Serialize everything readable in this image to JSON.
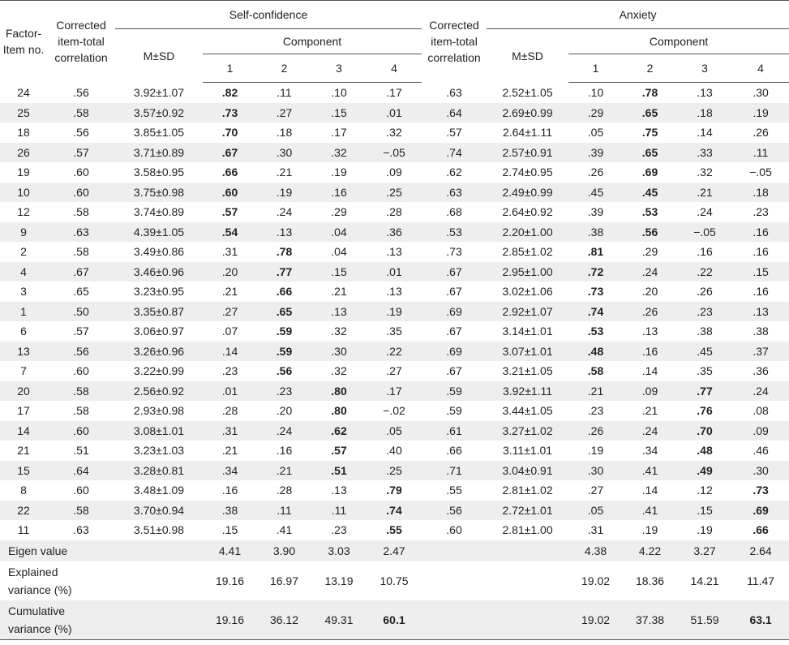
{
  "header": {
    "factor_item": "Factor-\nItem no.",
    "corrected_sc": "Corrected item-total correlation",
    "self_confidence": "Self-confidence",
    "msd_sc": "M±SD",
    "component_sc": "Component",
    "corrected_ax": "Corrected item-total correlation",
    "anxiety": "Anxiety",
    "msd_ax": "M±SD",
    "component_ax": "Component",
    "components": [
      "1",
      "2",
      "3",
      "4"
    ]
  },
  "rows": [
    {
      "item": "24",
      "sc_corr": ".56",
      "sc_msd": "3.92±1.07",
      "sc": [
        ".82",
        ".11",
        ".10",
        ".17"
      ],
      "sc_bold": 0,
      "ax_corr": ".63",
      "ax_msd": "2.52±1.05",
      "ax": [
        ".10",
        ".78",
        ".13",
        ".30"
      ],
      "ax_bold": 1
    },
    {
      "item": "25",
      "sc_corr": ".58",
      "sc_msd": "3.57±0.92",
      "sc": [
        ".73",
        ".27",
        ".15",
        ".01"
      ],
      "sc_bold": 0,
      "ax_corr": ".64",
      "ax_msd": "2.69±0.99",
      "ax": [
        ".29",
        ".65",
        ".18",
        ".19"
      ],
      "ax_bold": 1
    },
    {
      "item": "18",
      "sc_corr": ".56",
      "sc_msd": "3.85±1.05",
      "sc": [
        ".70",
        ".18",
        ".17",
        ".32"
      ],
      "sc_bold": 0,
      "ax_corr": ".57",
      "ax_msd": "2.64±1.11",
      "ax": [
        ".05",
        ".75",
        ".14",
        ".26"
      ],
      "ax_bold": 1
    },
    {
      "item": "26",
      "sc_corr": ".57",
      "sc_msd": "3.71±0.89",
      "sc": [
        ".67",
        ".30",
        ".32",
        "−.05"
      ],
      "sc_bold": 0,
      "ax_corr": ".74",
      "ax_msd": "2.57±0.91",
      "ax": [
        ".39",
        ".65",
        ".33",
        ".11"
      ],
      "ax_bold": 1
    },
    {
      "item": "19",
      "sc_corr": ".60",
      "sc_msd": "3.58±0.95",
      "sc": [
        ".66",
        ".21",
        ".19",
        ".09"
      ],
      "sc_bold": 0,
      "ax_corr": ".62",
      "ax_msd": "2.74±0.95",
      "ax": [
        ".26",
        ".69",
        ".32",
        "−.05"
      ],
      "ax_bold": 1
    },
    {
      "item": "10",
      "sc_corr": ".60",
      "sc_msd": "3.75±0.98",
      "sc": [
        ".60",
        ".19",
        ".16",
        ".25"
      ],
      "sc_bold": 0,
      "ax_corr": ".63",
      "ax_msd": "2.49±0.99",
      "ax": [
        ".45",
        ".45",
        ".21",
        ".18"
      ],
      "ax_bold": 1
    },
    {
      "item": "12",
      "sc_corr": ".58",
      "sc_msd": "3.74±0.89",
      "sc": [
        ".57",
        ".24",
        ".29",
        ".28"
      ],
      "sc_bold": 0,
      "ax_corr": ".68",
      "ax_msd": "2.64±0.92",
      "ax": [
        ".39",
        ".53",
        ".24",
        ".23"
      ],
      "ax_bold": 1
    },
    {
      "item": "9",
      "sc_corr": ".63",
      "sc_msd": "4.39±1.05",
      "sc": [
        ".54",
        ".13",
        ".04",
        ".36"
      ],
      "sc_bold": 0,
      "ax_corr": ".53",
      "ax_msd": "2.20±1.00",
      "ax": [
        ".38",
        ".56",
        "−.05",
        ".16"
      ],
      "ax_bold": 1
    },
    {
      "item": "2",
      "sc_corr": ".58",
      "sc_msd": "3.49±0.86",
      "sc": [
        ".31",
        ".78",
        ".04",
        ".13"
      ],
      "sc_bold": 1,
      "ax_corr": ".73",
      "ax_msd": "2.85±1.02",
      "ax": [
        ".81",
        ".29",
        ".16",
        ".16"
      ],
      "ax_bold": 0
    },
    {
      "item": "4",
      "sc_corr": ".67",
      "sc_msd": "3.46±0.96",
      "sc": [
        ".20",
        ".77",
        ".15",
        ".01"
      ],
      "sc_bold": 1,
      "ax_corr": ".67",
      "ax_msd": "2.95±1.00",
      "ax": [
        ".72",
        ".24",
        ".22",
        ".15"
      ],
      "ax_bold": 0
    },
    {
      "item": "3",
      "sc_corr": ".65",
      "sc_msd": "3.23±0.95",
      "sc": [
        ".21",
        ".66",
        ".21",
        ".13"
      ],
      "sc_bold": 1,
      "ax_corr": ".67",
      "ax_msd": "3.02±1.06",
      "ax": [
        ".73",
        ".20",
        ".26",
        ".16"
      ],
      "ax_bold": 0
    },
    {
      "item": "1",
      "sc_corr": ".50",
      "sc_msd": "3.35±0.87",
      "sc": [
        ".27",
        ".65",
        ".13",
        ".19"
      ],
      "sc_bold": 1,
      "ax_corr": ".69",
      "ax_msd": "2.92±1.07",
      "ax": [
        ".74",
        ".26",
        ".23",
        ".13"
      ],
      "ax_bold": 0
    },
    {
      "item": "6",
      "sc_corr": ".57",
      "sc_msd": "3.06±0.97",
      "sc": [
        ".07",
        ".59",
        ".32",
        ".35"
      ],
      "sc_bold": 1,
      "ax_corr": ".67",
      "ax_msd": "3.14±1.01",
      "ax": [
        ".53",
        ".13",
        ".38",
        ".38"
      ],
      "ax_bold": 0
    },
    {
      "item": "13",
      "sc_corr": ".56",
      "sc_msd": "3.26±0.96",
      "sc": [
        ".14",
        ".59",
        ".30",
        ".22"
      ],
      "sc_bold": 1,
      "ax_corr": ".69",
      "ax_msd": "3.07±1.01",
      "ax": [
        ".48",
        ".16",
        ".45",
        ".37"
      ],
      "ax_bold": 0
    },
    {
      "item": "7",
      "sc_corr": ".60",
      "sc_msd": "3.22±0.99",
      "sc": [
        ".23",
        ".56",
        ".32",
        ".27"
      ],
      "sc_bold": 1,
      "ax_corr": ".67",
      "ax_msd": "3.21±1.05",
      "ax": [
        ".58",
        ".14",
        ".35",
        ".36"
      ],
      "ax_bold": 0
    },
    {
      "item": "20",
      "sc_corr": ".58",
      "sc_msd": "2.56±0.92",
      "sc": [
        ".01",
        ".23",
        ".80",
        ".17"
      ],
      "sc_bold": 2,
      "ax_corr": ".59",
      "ax_msd": "3.92±1.11",
      "ax": [
        ".21",
        ".09",
        ".77",
        ".24"
      ],
      "ax_bold": 2
    },
    {
      "item": "17",
      "sc_corr": ".58",
      "sc_msd": "2.93±0.98",
      "sc": [
        ".28",
        ".20",
        ".80",
        "−.02"
      ],
      "sc_bold": 2,
      "ax_corr": ".59",
      "ax_msd": "3.44±1.05",
      "ax": [
        ".23",
        ".21",
        ".76",
        ".08"
      ],
      "ax_bold": 2
    },
    {
      "item": "14",
      "sc_corr": ".60",
      "sc_msd": "3.08±1.01",
      "sc": [
        ".31",
        ".24",
        ".62",
        ".05"
      ],
      "sc_bold": 2,
      "ax_corr": ".61",
      "ax_msd": "3.27±1.02",
      "ax": [
        ".26",
        ".24",
        ".70",
        ".09"
      ],
      "ax_bold": 2
    },
    {
      "item": "21",
      "sc_corr": ".51",
      "sc_msd": "3.23±1.03",
      "sc": [
        ".21",
        ".16",
        ".57",
        ".40"
      ],
      "sc_bold": 2,
      "ax_corr": ".66",
      "ax_msd": "3.11±1.01",
      "ax": [
        ".19",
        ".34",
        ".48",
        ".46"
      ],
      "ax_bold": 2
    },
    {
      "item": "15",
      "sc_corr": ".64",
      "sc_msd": "3.28±0.81",
      "sc": [
        ".34",
        ".21",
        ".51",
        ".25"
      ],
      "sc_bold": 2,
      "ax_corr": ".71",
      "ax_msd": "3.04±0.91",
      "ax": [
        ".30",
        ".41",
        ".49",
        ".30"
      ],
      "ax_bold": 2
    },
    {
      "item": "8",
      "sc_corr": ".60",
      "sc_msd": "3.48±1.09",
      "sc": [
        ".16",
        ".28",
        ".13",
        ".79"
      ],
      "sc_bold": 3,
      "ax_corr": ".55",
      "ax_msd": "2.81±1.02",
      "ax": [
        ".27",
        ".14",
        ".12",
        ".73"
      ],
      "ax_bold": 3
    },
    {
      "item": "22",
      "sc_corr": ".58",
      "sc_msd": "3.70±0.94",
      "sc": [
        ".38",
        ".11",
        ".11",
        ".74"
      ],
      "sc_bold": 3,
      "ax_corr": ".56",
      "ax_msd": "2.72±1.01",
      "ax": [
        ".05",
        ".41",
        ".15",
        ".69"
      ],
      "ax_bold": 3
    },
    {
      "item": "11",
      "sc_corr": ".63",
      "sc_msd": "3.51±0.98",
      "sc": [
        ".15",
        ".41",
        ".23",
        ".55"
      ],
      "sc_bold": 3,
      "ax_corr": ".60",
      "ax_msd": "2.81±1.00",
      "ax": [
        ".31",
        ".19",
        ".19",
        ".66"
      ],
      "ax_bold": 3
    }
  ],
  "summary": {
    "eigen": {
      "label": "Eigen value",
      "sc": [
        "4.41",
        "3.90",
        "3.03",
        "2.47"
      ],
      "ax": [
        "4.38",
        "4.22",
        "3.27",
        "2.64"
      ]
    },
    "explained": {
      "label": "Explained variance (%)",
      "sc": [
        "19.16",
        "16.97",
        "13.19",
        "10.75"
      ],
      "ax": [
        "19.02",
        "18.36",
        "14.21",
        "11.47"
      ]
    },
    "cumulative": {
      "label": "Cumulative variance (%)",
      "sc": [
        "19.16",
        "36.12",
        "49.31",
        "60.1"
      ],
      "ax": [
        "19.02",
        "37.38",
        "51.59",
        "63.1"
      ]
    }
  }
}
